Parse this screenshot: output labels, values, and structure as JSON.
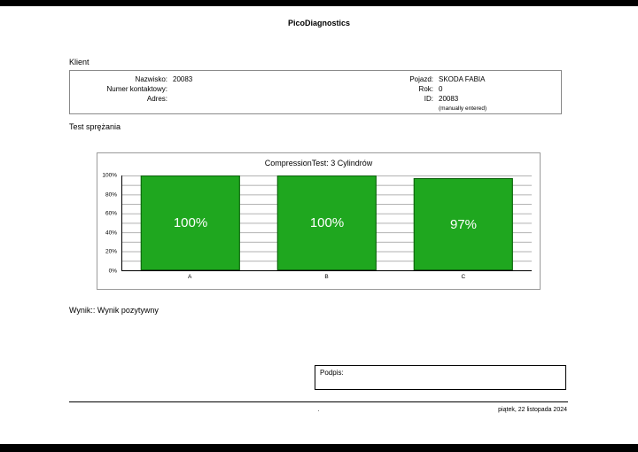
{
  "header": {
    "app_title": "PicoDiagnostics"
  },
  "client": {
    "section_title": "Klient",
    "left": [
      {
        "label": "Nazwisko:",
        "value": "20083"
      },
      {
        "label": "Numer kontaktowy:",
        "value": ""
      },
      {
        "label": "Adres:",
        "value": ""
      }
    ],
    "right": [
      {
        "label": "Pojazd:",
        "value": "SKODA FABIA"
      },
      {
        "label": "Rok:",
        "value": "0"
      },
      {
        "label": "ID:",
        "value": "20083"
      },
      {
        "label": "",
        "value": "(manually entered)"
      }
    ]
  },
  "compression": {
    "section_title": "Test sprężania",
    "result_text": "Wynik:: Wynik pozytywny"
  },
  "signature": {
    "label": "Podpis:"
  },
  "footer": {
    "separator": ".",
    "date": "piątek, 22 listopada 2024"
  },
  "chart_data": {
    "type": "bar",
    "title": "CompressionTest: 3 Cylindrów",
    "categories": [
      "A",
      "B",
      "C"
    ],
    "values": [
      100,
      100,
      97
    ],
    "bar_labels": [
      "100%",
      "100%",
      "97%"
    ],
    "xlabel": "",
    "ylabel": "",
    "ylim": [
      0,
      100
    ],
    "y_ticks": [
      "100%",
      "80%",
      "60%",
      "40%",
      "20%",
      "0%"
    ],
    "grid": true,
    "legend_position": "none",
    "bar_color": "#1fa71f",
    "bar_label_color": "#ffffff"
  }
}
